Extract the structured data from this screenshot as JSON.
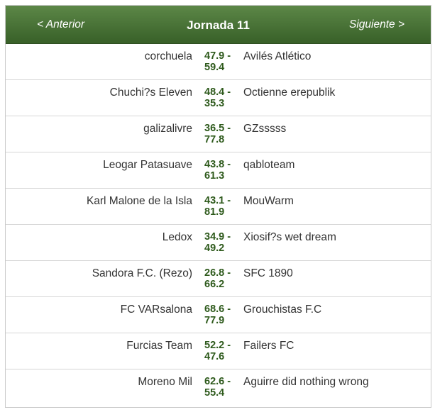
{
  "header": {
    "prev_label": "< Anterior",
    "title": "Jornada 11",
    "next_label": "Siguiente >"
  },
  "matches": [
    {
      "home": "corchuela",
      "home_score": "47.9 -",
      "away_score": "59.4",
      "away": "Avilés Atlético"
    },
    {
      "home": "Chuchi?s Eleven",
      "home_score": "48.4 -",
      "away_score": "35.3",
      "away": "Octienne erepublik"
    },
    {
      "home": "galizalivre",
      "home_score": "36.5 -",
      "away_score": "77.8",
      "away": "GZsssss"
    },
    {
      "home": "Leogar Patasuave",
      "home_score": "43.8 -",
      "away_score": "61.3",
      "away": "qabloteam"
    },
    {
      "home": "Karl Malone de la Isla",
      "home_score": "43.1 -",
      "away_score": "81.9",
      "away": "MouWarm"
    },
    {
      "home": "Ledox",
      "home_score": "34.9 -",
      "away_score": "49.2",
      "away": "Xiosif?s wet dream"
    },
    {
      "home": "Sandora F.C. (Rezo)",
      "home_score": "26.8 -",
      "away_score": "66.2",
      "away": "SFC 1890"
    },
    {
      "home": "FC VARsalona",
      "home_score": "68.6 -",
      "away_score": "77.9",
      "away": "Grouchistas F.C"
    },
    {
      "home": "Furcias Team",
      "home_score": "52.2 -",
      "away_score": "47.6",
      "away": "Failers FC"
    },
    {
      "home": "Moreno Mil",
      "home_score": "62.6 -",
      "away_score": "55.4",
      "away": "Aguirre did nothing wrong"
    }
  ],
  "colors": {
    "header_top": "#5c8747",
    "header_bottom": "#386028",
    "score": "#2e5a1c",
    "text": "#333333"
  }
}
